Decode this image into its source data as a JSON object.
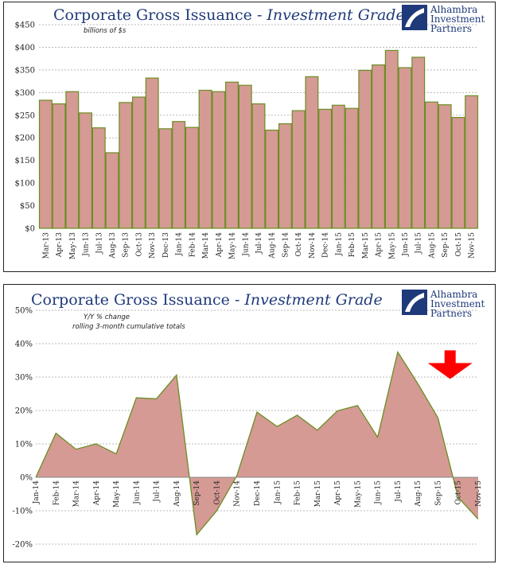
{
  "logo": {
    "line1": "Alhambra",
    "line2": "Investment",
    "line3": "Partners"
  },
  "colors": {
    "bar_fill": "#d59a94",
    "bar_stroke": "#6b8e23",
    "area_fill": "#d59a94",
    "area_stroke": "#6b8e23",
    "title": "#1f3a7a",
    "arrow": "#ff0000"
  },
  "chart_data": [
    {
      "type": "bar",
      "title_main": "Corporate Gross Issuance - ",
      "title_italic": "Investment Grade",
      "subtitle": "billions of $s",
      "ylim": [
        0,
        450
      ],
      "yticks": [
        0,
        50,
        100,
        150,
        200,
        250,
        300,
        350,
        400,
        450
      ],
      "ytick_labels": [
        "$0",
        "$50",
        "$100",
        "$150",
        "$200",
        "$250",
        "$300",
        "$350",
        "$400",
        "$450"
      ],
      "grid": true,
      "categories": [
        "Mar-13",
        "Apr-13",
        "May-13",
        "Jun-13",
        "Jul-13",
        "Aug-13",
        "Sep-13",
        "Oct-13",
        "Nov-13",
        "Dec-13",
        "Jan-14",
        "Feb-14",
        "Mar-14",
        "Apr-14",
        "May-14",
        "Jun-14",
        "Jul-14",
        "Aug-14",
        "Sep-14",
        "Oct-14",
        "Nov-14",
        "Dec-14",
        "Jan-15",
        "Feb-15",
        "Mar-15",
        "Apr-15",
        "May-15",
        "Jun-15",
        "Jul-15",
        "Aug-15",
        "Sep-15",
        "Oct-15",
        "Nov-15"
      ],
      "values": [
        283,
        275,
        302,
        255,
        222,
        167,
        278,
        290,
        332,
        220,
        236,
        223,
        305,
        302,
        323,
        316,
        275,
        217,
        231,
        260,
        335,
        263,
        272,
        265,
        349,
        361,
        393,
        355,
        378,
        279,
        273,
        245,
        293
      ]
    },
    {
      "type": "area",
      "title_main": "Corporate Gross Issuance - ",
      "title_italic": "Investment Grade",
      "subtitle_line1": "Y/Y % change",
      "subtitle_line2": "rolling 3-month cumulative totals",
      "ylim": [
        -20,
        50
      ],
      "yticks": [
        -20,
        -10,
        0,
        10,
        20,
        30,
        40,
        50
      ],
      "ytick_labels": [
        "-20%",
        "-10%",
        "0%",
        "10%",
        "20%",
        "30%",
        "40%",
        "50%"
      ],
      "grid": true,
      "categories": [
        "Jan-14",
        "Feb-14",
        "Mar-14",
        "Apr-14",
        "May-14",
        "Jun-14",
        "Jul-14",
        "Aug-14",
        "Sep-14",
        "Oct-14",
        "Nov-14",
        "Dec-14",
        "Jan-15",
        "Feb-15",
        "Mar-15",
        "Apr-15",
        "May-15",
        "Jun-15",
        "Jul-15",
        "Aug-15",
        "Sep-15",
        "Oct-15",
        "Nov-15"
      ],
      "values": [
        0,
        13.2,
        8.4,
        10.0,
        7.0,
        23.8,
        23.5,
        30.6,
        -17.2,
        -10.0,
        0.5,
        19.5,
        15.2,
        18.6,
        14.1,
        19.9,
        21.5,
        12.0,
        37.5,
        28.0,
        17.8,
        -6.0,
        -12.5
      ],
      "annotation": "down-arrow-near-oct-15"
    }
  ]
}
